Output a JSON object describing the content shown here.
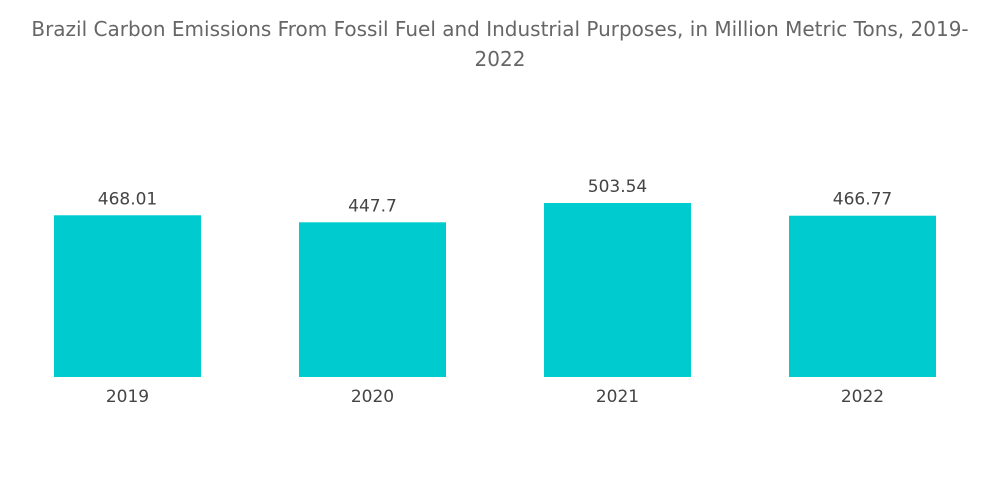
{
  "chart_data": {
    "type": "bar",
    "title": "Brazil Carbon Emissions From Fossil Fuel and Industrial Purposes, in Million Metric Tons, 2019-2022",
    "categories": [
      "2019",
      "2020",
      "2021",
      "2022"
    ],
    "values": [
      468.01,
      447.7,
      503.54,
      466.77
    ],
    "color": "#00cccf"
  }
}
